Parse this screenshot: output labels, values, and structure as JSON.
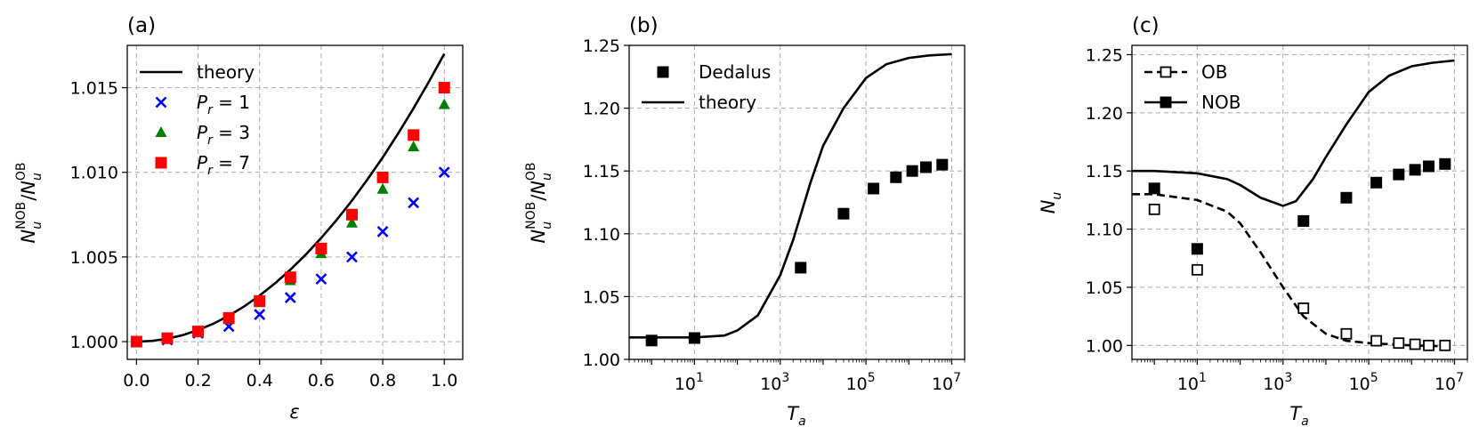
{
  "colors": {
    "theory": "#000000",
    "pr1": "#0000ff",
    "pr3": "#008000",
    "pr7": "#ff0000",
    "dedalus": "#000000"
  },
  "chart_data": [
    {
      "panel": "(a)",
      "type": "scatter",
      "xlabel": "ε",
      "ylabel_main": "N",
      "ylabel_sub": "u",
      "ylabel_sup_num": "NOB",
      "ylabel_sup_den": "OB",
      "xlim": [
        -0.03,
        1.06
      ],
      "ylim": [
        0.99895,
        1.0175
      ],
      "xticks": [
        0.0,
        0.2,
        0.4,
        0.6,
        0.8,
        1.0
      ],
      "xtick_labels": [
        "0.0",
        "0.2",
        "0.4",
        "0.6",
        "0.8",
        "1.0"
      ],
      "yticks": [
        1.0,
        1.005,
        1.01,
        1.015
      ],
      "ytick_labels": [
        "1.000",
        "1.005",
        "1.010",
        "1.015"
      ],
      "grid": true,
      "legend_position": "upper-left",
      "series": [
        {
          "name": "theory",
          "style": "line",
          "color": "#000000",
          "x": [
            0,
            0.05,
            0.1,
            0.15,
            0.2,
            0.25,
            0.3,
            0.35,
            0.4,
            0.45,
            0.5,
            0.55,
            0.6,
            0.65,
            0.7,
            0.75,
            0.8,
            0.85,
            0.9,
            0.95,
            1.0
          ],
          "y": [
            1.0,
            1.00004,
            1.00017,
            1.00038,
            1.00068,
            1.00106,
            1.00153,
            1.00208,
            1.00272,
            1.00344,
            1.00425,
            1.00514,
            1.00612,
            1.00718,
            1.00833,
            1.00957,
            1.01088,
            1.01229,
            1.01378,
            1.01535,
            1.017
          ]
        },
        {
          "name": "P_r = 1",
          "label_sub": "r",
          "label_value": "1",
          "style": "x",
          "color": "#0000ff",
          "x": [
            0,
            0.1,
            0.2,
            0.3,
            0.4,
            0.5,
            0.6,
            0.7,
            0.8,
            0.9,
            1.0
          ],
          "y": [
            1.0,
            1.0001,
            1.0005,
            1.0009,
            1.0016,
            1.0026,
            1.0037,
            1.005,
            1.0065,
            1.0082,
            1.01
          ]
        },
        {
          "name": "P_r = 3",
          "label_sub": "r",
          "label_value": "3",
          "style": "triangle",
          "color": "#008000",
          "x": [
            0,
            0.1,
            0.2,
            0.3,
            0.4,
            0.5,
            0.6,
            0.7,
            0.8,
            0.9,
            1.0
          ],
          "y": [
            1.0,
            1.0002,
            1.0006,
            1.0013,
            1.0023,
            1.0036,
            1.0052,
            1.007,
            1.009,
            1.0115,
            1.014
          ]
        },
        {
          "name": "P_r = 7",
          "label_sub": "r",
          "label_value": "7",
          "style": "square",
          "color": "#ff0000",
          "x": [
            0,
            0.1,
            0.2,
            0.3,
            0.4,
            0.5,
            0.6,
            0.7,
            0.8,
            0.9,
            1.0
          ],
          "y": [
            1.0,
            1.0002,
            1.0006,
            1.0014,
            1.0024,
            1.0038,
            1.0055,
            1.0075,
            1.0097,
            1.0122,
            1.015
          ]
        }
      ]
    },
    {
      "panel": "(b)",
      "type": "scatter",
      "xscale": "log",
      "xlabel_main": "T",
      "xlabel_sub": "a",
      "ylabel_main": "N",
      "ylabel_sub": "u",
      "ylabel_sup_num": "NOB",
      "ylabel_sup_den": "OB",
      "xlim": [
        0.3,
        20000000
      ],
      "ylim": [
        1.0,
        1.25
      ],
      "xticks_exponents": [
        "1",
        "3",
        "5",
        "7"
      ],
      "yticks": [
        1.0,
        1.05,
        1.1,
        1.15,
        1.2,
        1.25
      ],
      "ytick_labels": [
        "1.00",
        "1.05",
        "1.10",
        "1.15",
        "1.20",
        "1.25"
      ],
      "grid": true,
      "legend_position": "upper-left",
      "series": [
        {
          "name": "Dedalus",
          "style": "square",
          "color": "#000000",
          "x": [
            1,
            10,
            3000,
            30000,
            150000,
            500000,
            1200000,
            2500000,
            6000000
          ],
          "y": [
            1.015,
            1.017,
            1.073,
            1.116,
            1.136,
            1.145,
            1.15,
            1.153,
            1.155
          ]
        },
        {
          "name": "theory",
          "style": "line",
          "color": "#000000",
          "x": [
            0.3,
            1,
            10,
            50,
            100,
            300,
            1000,
            2000,
            5000,
            10000,
            30000,
            100000,
            300000,
            1000000,
            3000000,
            10000000
          ],
          "y": [
            1.0175,
            1.0175,
            1.0175,
            1.019,
            1.023,
            1.035,
            1.067,
            1.095,
            1.14,
            1.17,
            1.2,
            1.224,
            1.235,
            1.24,
            1.242,
            1.243
          ]
        }
      ]
    },
    {
      "panel": "(c)",
      "type": "scatter",
      "xscale": "log",
      "xlabel_main": "T",
      "xlabel_sub": "a",
      "ylabel_main": "N",
      "ylabel_sub": "u",
      "xlim": [
        0.3,
        20000000
      ],
      "ylim": [
        0.988,
        1.258
      ],
      "xticks_exponents": [
        "1",
        "3",
        "5",
        "7"
      ],
      "yticks": [
        1.0,
        1.05,
        1.1,
        1.15,
        1.2,
        1.25
      ],
      "ytick_labels": [
        "1.00",
        "1.05",
        "1.10",
        "1.15",
        "1.20",
        "1.25"
      ],
      "grid": true,
      "legend_position": "upper-left",
      "series": [
        {
          "name": "OB",
          "style": "open-square-dashed",
          "color": "#000000",
          "line_x": [
            0.3,
            1,
            10,
            50,
            100,
            300,
            1000,
            3000,
            10000,
            30000,
            100000,
            1000000,
            10000000
          ],
          "line_y": [
            1.13,
            1.13,
            1.125,
            1.115,
            1.105,
            1.08,
            1.05,
            1.025,
            1.01,
            1.004,
            1.002,
            1.0,
            0.999
          ],
          "x": [
            1,
            10,
            3000,
            30000,
            150000,
            500000,
            1200000,
            2500000,
            6000000
          ],
          "y": [
            1.117,
            1.065,
            1.032,
            1.01,
            1.004,
            1.002,
            1.001,
            1.0,
            1.0
          ]
        },
        {
          "name": "NOB",
          "style": "filled-square-solid",
          "color": "#000000",
          "line_x": [
            0.3,
            1,
            10,
            50,
            100,
            300,
            1000,
            2000,
            5000,
            10000,
            30000,
            100000,
            300000,
            1000000,
            3000000,
            10000000
          ],
          "line_y": [
            1.15,
            1.15,
            1.148,
            1.143,
            1.138,
            1.127,
            1.12,
            1.124,
            1.143,
            1.162,
            1.19,
            1.218,
            1.232,
            1.24,
            1.243,
            1.245
          ],
          "x": [
            1,
            10,
            3000,
            30000,
            150000,
            500000,
            1200000,
            2500000,
            6000000
          ],
          "y": [
            1.135,
            1.083,
            1.107,
            1.127,
            1.14,
            1.147,
            1.151,
            1.154,
            1.156
          ]
        }
      ]
    }
  ]
}
